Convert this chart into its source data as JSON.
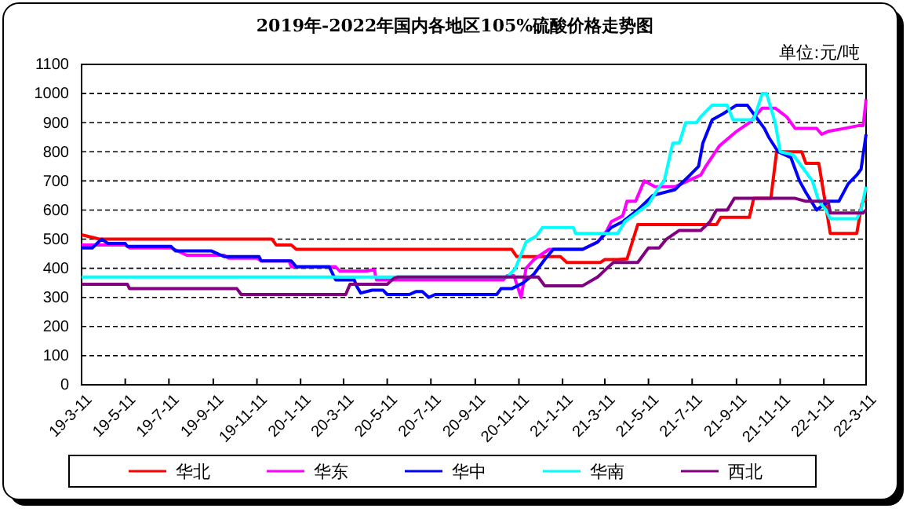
{
  "chart_data": {
    "type": "line",
    "title": "2019年-2022年国内各地区105%硫酸价格走势图",
    "annotations": [
      "单位:元/吨"
    ],
    "xlim": [
      "2019-03-11",
      "2022-03-11"
    ],
    "xticks": [
      {
        "value": "2019-03-11",
        "label": "19-3-11"
      },
      {
        "value": "2019-05-11",
        "label": "19-5-11"
      },
      {
        "value": "2019-07-11",
        "label": "19-7-11"
      },
      {
        "value": "2019-09-11",
        "label": "19-9-11"
      },
      {
        "value": "2019-11-11",
        "label": "19-11-11"
      },
      {
        "value": "2020-01-11",
        "label": "20-1-11"
      },
      {
        "value": "2020-03-11",
        "label": "20-3-11"
      },
      {
        "value": "2020-05-11",
        "label": "20-5-11"
      },
      {
        "value": "2020-07-11",
        "label": "20-7-11"
      },
      {
        "value": "2020-09-11",
        "label": "20-9-11"
      },
      {
        "value": "2020-11-11",
        "label": "20-11-11"
      },
      {
        "value": "2021-01-11",
        "label": "21-1-11"
      },
      {
        "value": "2021-03-11",
        "label": "21-3-11"
      },
      {
        "value": "2021-05-11",
        "label": "21-5-11"
      },
      {
        "value": "2021-07-11",
        "label": "21-7-11"
      },
      {
        "value": "2021-09-11",
        "label": "21-9-11"
      },
      {
        "value": "2021-11-11",
        "label": "21-11-11"
      },
      {
        "value": "2022-01-11",
        "label": "22-1-11"
      },
      {
        "value": "2022-03-11",
        "label": "22-3-11"
      }
    ],
    "ylim": [
      0,
      1100
    ],
    "yticks": [
      0,
      100,
      200,
      300,
      400,
      500,
      600,
      700,
      800,
      900,
      1000,
      1100
    ],
    "grid": "y",
    "legend": "bottom",
    "marker": "none",
    "line_style": "solid",
    "series": [
      {
        "name": "华北",
        "color": "#ff0000",
        "x": [
          "2019-03-11",
          "2019-04-05",
          "2019-12-02",
          "2019-12-08",
          "2019-12-29",
          "2020-01-05",
          "2020-11-01",
          "2020-11-08",
          "2021-01-08",
          "2021-01-17",
          "2021-03-05",
          "2021-03-11",
          "2021-03-29",
          "2021-04-11",
          "2021-04-26",
          "2021-08-14",
          "2021-08-20",
          "2021-09-29",
          "2021-10-05",
          "2021-10-29",
          "2021-11-06",
          "2021-12-11",
          "2021-12-17",
          "2022-01-04",
          "2022-01-20",
          "2022-02-26",
          "2022-03-05",
          "2022-03-11"
        ],
        "values": [
          515,
          500,
          500,
          480,
          480,
          465,
          465,
          440,
          440,
          420,
          420,
          430,
          430,
          432,
          550,
          550,
          575,
          575,
          640,
          640,
          800,
          800,
          760,
          760,
          520,
          520,
          620,
          640
        ]
      },
      {
        "name": "华东",
        "color": "#ff00ff",
        "x": [
          "2019-03-11",
          "2019-05-11",
          "2019-05-17",
          "2019-07-14",
          "2019-08-05",
          "2019-09-26",
          "2019-10-02",
          "2019-11-11",
          "2019-11-17",
          "2019-12-26",
          "2019-12-29",
          "2020-02-29",
          "2020-03-06",
          "2020-04-11",
          "2020-04-23",
          "2020-04-26",
          "2020-10-20",
          "2020-10-26",
          "2020-11-04",
          "2020-11-14",
          "2020-11-21",
          "2020-12-02",
          "2020-12-23",
          "2021-02-08",
          "2021-03-01",
          "2021-03-14",
          "2021-03-20",
          "2021-04-05",
          "2021-04-11",
          "2021-04-23",
          "2021-05-05",
          "2021-05-20",
          "2021-06-17",
          "2021-06-26",
          "2021-07-23",
          "2021-07-30",
          "2021-08-18",
          "2021-09-11",
          "2021-09-29",
          "2021-10-17",
          "2021-11-04",
          "2021-11-20",
          "2021-12-02",
          "2022-01-01",
          "2022-01-08",
          "2022-01-17",
          "2022-02-08",
          "2022-03-01",
          "2022-03-07",
          "2022-03-11"
        ],
        "values": [
          480,
          480,
          470,
          470,
          445,
          445,
          435,
          435,
          425,
          425,
          405,
          405,
          390,
          390,
          395,
          360,
          360,
          375,
          375,
          300,
          400,
          430,
          465,
          465,
          490,
          530,
          560,
          580,
          630,
          630,
          700,
          680,
          680,
          690,
          720,
          750,
          820,
          870,
          900,
          950,
          950,
          920,
          880,
          880,
          860,
          870,
          880,
          890,
          890,
          980
        ]
      },
      {
        "name": "华中",
        "color": "#0000ff",
        "x": [
          "2019-03-11",
          "2019-03-26",
          "2019-04-08",
          "2019-04-17",
          "2019-05-11",
          "2019-05-14",
          "2019-07-14",
          "2019-07-20",
          "2019-09-08",
          "2019-09-26",
          "2019-11-14",
          "2019-11-17",
          "2019-12-29",
          "2020-01-05",
          "2020-02-20",
          "2020-02-29",
          "2020-03-26",
          "2020-03-29",
          "2020-04-04",
          "2020-04-20",
          "2020-05-05",
          "2020-05-11",
          "2020-06-11",
          "2020-06-20",
          "2020-06-29",
          "2020-07-08",
          "2020-07-17",
          "2020-10-11",
          "2020-10-17",
          "2020-11-01",
          "2020-11-17",
          "2020-12-02",
          "2020-12-17",
          "2020-12-29",
          "2021-02-08",
          "2021-03-01",
          "2021-03-20",
          "2021-04-05",
          "2021-04-26",
          "2021-05-17",
          "2021-06-17",
          "2021-07-08",
          "2021-07-20",
          "2021-07-26",
          "2021-08-08",
          "2021-08-23",
          "2021-09-11",
          "2021-09-26",
          "2021-10-05",
          "2021-10-20",
          "2021-10-26",
          "2021-11-08",
          "2021-11-26",
          "2021-12-08",
          "2021-12-17",
          "2022-01-01",
          "2022-01-17",
          "2022-02-01",
          "2022-02-14",
          "2022-02-26",
          "2022-03-04",
          "2022-03-11"
        ],
        "values": [
          470,
          470,
          500,
          485,
          485,
          475,
          475,
          460,
          460,
          440,
          440,
          425,
          425,
          405,
          405,
          360,
          360,
          340,
          315,
          325,
          325,
          310,
          310,
          320,
          320,
          300,
          310,
          310,
          330,
          330,
          350,
          380,
          430,
          465,
          465,
          490,
          540,
          560,
          600,
          650,
          670,
          720,
          750,
          830,
          910,
          930,
          960,
          960,
          930,
          880,
          850,
          800,
          780,
          700,
          660,
          600,
          630,
          630,
          690,
          720,
          740,
          860
        ]
      },
      {
        "name": "华南",
        "color": "#00ffff",
        "x": [
          "2019-03-11",
          "2020-10-26",
          "2020-11-06",
          "2020-11-21",
          "2020-12-05",
          "2020-12-14",
          "2021-01-26",
          "2021-01-29",
          "2021-03-29",
          "2021-04-08",
          "2021-05-11",
          "2021-05-26",
          "2021-06-02",
          "2021-06-14",
          "2021-06-23",
          "2021-07-02",
          "2021-07-17",
          "2021-07-23",
          "2021-08-08",
          "2021-08-29",
          "2021-09-06",
          "2021-10-05",
          "2021-10-17",
          "2021-10-23",
          "2021-11-04",
          "2021-11-11",
          "2021-11-29",
          "2021-12-14",
          "2021-12-26",
          "2022-01-04",
          "2022-01-14",
          "2022-01-20",
          "2022-02-26",
          "2022-03-04",
          "2022-03-11"
        ],
        "values": [
          370,
          370,
          400,
          490,
          510,
          540,
          540,
          520,
          520,
          560,
          620,
          680,
          700,
          830,
          830,
          900,
          900,
          920,
          960,
          960,
          910,
          910,
          1000,
          1000,
          900,
          800,
          790,
          740,
          700,
          630,
          600,
          570,
          570,
          600,
          680
        ]
      },
      {
        "name": "西北",
        "color": "#800080",
        "x": [
          "2019-03-11",
          "2019-05-14",
          "2019-05-17",
          "2019-10-14",
          "2019-10-20",
          "2020-03-14",
          "2020-03-20",
          "2020-05-11",
          "2020-05-20",
          "2020-05-26",
          "2020-12-08",
          "2020-12-17",
          "2021-02-08",
          "2021-03-01",
          "2021-03-14",
          "2021-03-23",
          "2021-04-26",
          "2021-05-11",
          "2021-05-26",
          "2021-06-05",
          "2021-06-23",
          "2021-07-23",
          "2021-08-05",
          "2021-08-14",
          "2021-08-29",
          "2021-09-08",
          "2021-12-02",
          "2021-12-17",
          "2022-01-17",
          "2022-01-20",
          "2022-03-07",
          "2022-03-11"
        ],
        "values": [
          345,
          345,
          330,
          330,
          310,
          310,
          345,
          345,
          365,
          370,
          370,
          340,
          340,
          370,
          400,
          420,
          420,
          470,
          470,
          500,
          530,
          530,
          560,
          600,
          600,
          640,
          640,
          630,
          630,
          590,
          590,
          600
        ]
      }
    ]
  }
}
